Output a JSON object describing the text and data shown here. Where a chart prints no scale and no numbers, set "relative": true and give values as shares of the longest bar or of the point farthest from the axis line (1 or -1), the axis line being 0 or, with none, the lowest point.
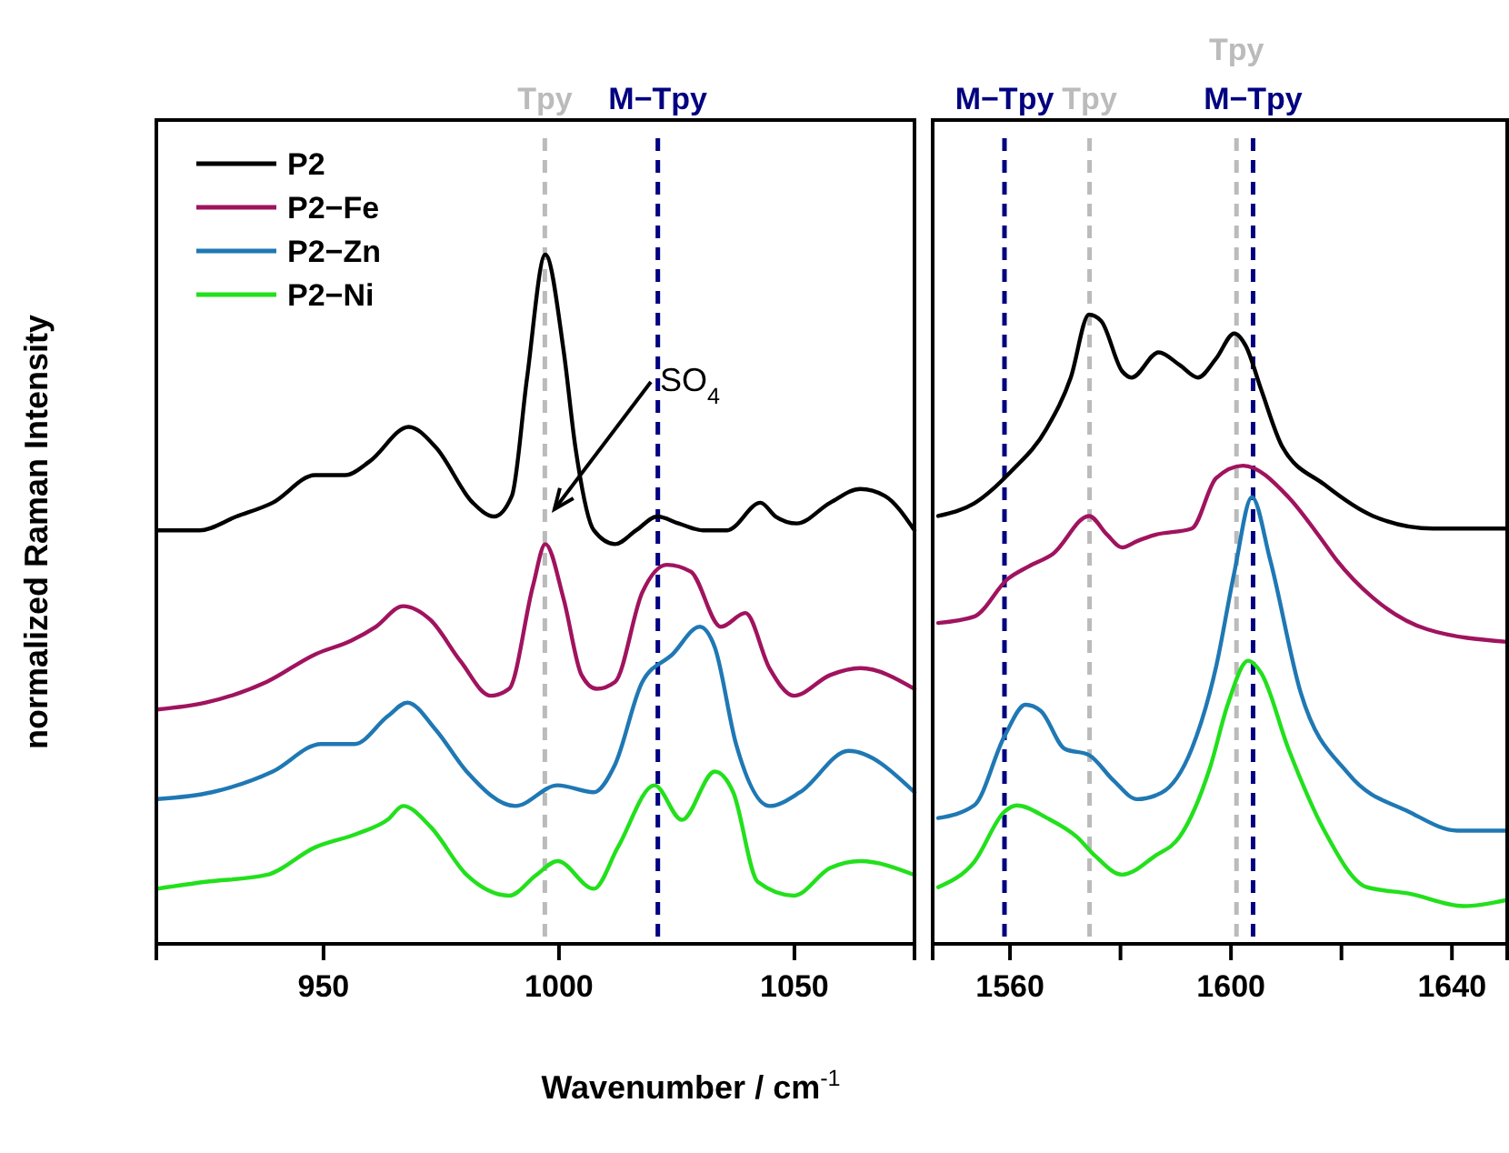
{
  "chart_data": [
    {
      "type": "line",
      "xlabel": "Wavenumber / cm$^{-1}$",
      "ylabel": "normalized Raman Intensity",
      "relative": true,
      "xlim": [
        914.5,
        1075.5
      ],
      "xticks": [
        950,
        1000,
        1050
      ],
      "legend": "top left",
      "line_style": "solid",
      "series": [
        {
          "name": "P2",
          "color": "#000000",
          "x": [
            914.7,
            923.7,
            931.5,
            939.2,
            948.2,
            954.6,
            959.8,
            968.1,
            973.9,
            981.7,
            986.2,
            990,
            993.2,
            997.1,
            1001,
            1003.5,
            1007.4,
            1011.9,
            1016.4,
            1020.9,
            1025.4,
            1030.6,
            1035.7,
            1042.8,
            1046,
            1050.5,
            1057.6,
            1064,
            1069.2,
            1075.5
          ],
          "values": [
            0.6,
            0.6,
            0.62,
            0.64,
            0.68,
            0.68,
            0.7,
            0.75,
            0.72,
            0.64,
            0.62,
            0.65,
            0.82,
            1,
            0.86,
            0.72,
            0.6,
            0.58,
            0.6,
            0.62,
            0.61,
            0.6,
            0.6,
            0.64,
            0.62,
            0.61,
            0.64,
            0.66,
            0.65,
            0.6
          ]
        },
        {
          "name": "P2−Fe",
          "color": "#a0135e",
          "x": [
            914.7,
            925,
            937.9,
            948.2,
            955.9,
            961.1,
            966.9,
            972.7,
            979.1,
            985.5,
            989.4,
            994.5,
            997.1,
            1001,
            1004.8,
            1008,
            1011.9,
            1017.7,
            1022.9,
            1028,
            1034.4,
            1039.6,
            1044.7,
            1049.9,
            1057.6,
            1064,
            1075.5
          ],
          "values": [
            0.34,
            0.35,
            0.38,
            0.42,
            0.44,
            0.46,
            0.49,
            0.47,
            0.41,
            0.36,
            0.37,
            0.52,
            0.58,
            0.5,
            0.39,
            0.37,
            0.38,
            0.51,
            0.55,
            0.54,
            0.46,
            0.48,
            0.4,
            0.36,
            0.39,
            0.4,
            0.37
          ]
        },
        {
          "name": "P2−Zn",
          "color": "#1f78b4",
          "x": [
            914.7,
            926.3,
            939.2,
            949.5,
            956.6,
            963.6,
            967.8,
            973.9,
            980.4,
            990.7,
            999.7,
            1007.4,
            1011.9,
            1017.7,
            1024.1,
            1029.9,
            1033.1,
            1037.6,
            1044.7,
            1051.2,
            1061.5,
            1075.5
          ],
          "values": [
            0.21,
            0.22,
            0.25,
            0.29,
            0.29,
            0.33,
            0.35,
            0.31,
            0.25,
            0.2,
            0.23,
            0.22,
            0.26,
            0.38,
            0.42,
            0.46,
            0.43,
            0.29,
            0.2,
            0.22,
            0.28,
            0.22
          ]
        },
        {
          "name": "P2−Ni",
          "color": "#22e01c",
          "x": [
            914.7,
            925,
            937.9,
            948.2,
            957.2,
            963.6,
            966.9,
            972.7,
            980.4,
            989.4,
            995.2,
            999.7,
            1007.4,
            1012.5,
            1020.3,
            1026.1,
            1033.1,
            1037,
            1042.2,
            1049.9,
            1057.6,
            1064,
            1075.5
          ],
          "values": [
            0.08,
            0.09,
            0.1,
            0.14,
            0.16,
            0.18,
            0.2,
            0.17,
            0.1,
            0.07,
            0.1,
            0.12,
            0.08,
            0.14,
            0.23,
            0.18,
            0.25,
            0.22,
            0.09,
            0.07,
            0.11,
            0.12,
            0.1
          ]
        }
      ],
      "ref_lines": [
        {
          "axis": "x",
          "value": 997,
          "label": "Tpy",
          "color": "#bbbbbb",
          "line_style": "dashed"
        },
        {
          "axis": "x",
          "value": 1021,
          "label": "M−Tpy",
          "color": "#000080",
          "line_style": "dashed"
        }
      ],
      "annotations": [
        "SO$_{4}$"
      ]
    },
    {
      "type": "line",
      "relative": true,
      "xlim": [
        1546,
        1650
      ],
      "xticks": [
        1560,
        {
          "value": 1580,
          "label": null
        },
        1600,
        {
          "value": 1620,
          "label": null
        },
        1640
      ],
      "line_style": "solid",
      "series": [
        {
          "color": "#000000",
          "x": [
            1547,
            1553.5,
            1560.1,
            1566.7,
            1571,
            1574.3,
            1576.5,
            1580.3,
            1582,
            1586.9,
            1590.7,
            1594,
            1597.3,
            1600.6,
            1602.7,
            1605.5,
            1609.3,
            1616.9,
            1625.7,
            1636.6,
            1650
          ],
          "values": [
            0.68,
            0.7,
            0.75,
            0.82,
            0.9,
            1,
            0.99,
            0.91,
            0.9,
            0.94,
            0.92,
            0.9,
            0.93,
            0.97,
            0.95,
            0.88,
            0.79,
            0.73,
            0.68,
            0.66,
            0.66
          ]
        },
        {
          "color": "#a0135e",
          "x": [
            1547,
            1553.5,
            1559.6,
            1563.4,
            1567.8,
            1574.3,
            1577.6,
            1580.3,
            1583,
            1586.3,
            1592.9,
            1597.3,
            1602.2,
            1610.4,
            1615.8,
            1619.1,
            1625.7,
            1635.5,
            1650
          ],
          "values": [
            0.51,
            0.52,
            0.58,
            0.6,
            0.62,
            0.68,
            0.65,
            0.63,
            0.64,
            0.65,
            0.66,
            0.74,
            0.76,
            0.71,
            0.65,
            0.61,
            0.55,
            0.5,
            0.48
          ]
        },
        {
          "color": "#1f78b4",
          "x": [
            1547,
            1553.5,
            1559,
            1562.8,
            1565.6,
            1569.9,
            1574.3,
            1578.7,
            1583,
            1587.4,
            1592.9,
            1597.3,
            1600.6,
            1603.8,
            1607.1,
            1612.6,
            1621.3,
            1632.2,
            1641,
            1650
          ],
          "values": [
            0.2,
            0.22,
            0.33,
            0.38,
            0.37,
            0.31,
            0.3,
            0.26,
            0.23,
            0.24,
            0.31,
            0.44,
            0.59,
            0.71,
            0.61,
            0.4,
            0.27,
            0.21,
            0.18,
            0.18
          ]
        },
        {
          "color": "#22e01c",
          "x": [
            1547,
            1553.5,
            1559,
            1561.2,
            1566.7,
            1572.1,
            1575.4,
            1580.3,
            1586.3,
            1590.7,
            1596.2,
            1599.4,
            1603.1,
            1605.5,
            1610.4,
            1616.9,
            1624.6,
            1632.2,
            1642.1,
            1650
          ],
          "values": [
            0.09,
            0.13,
            0.21,
            0.22,
            0.2,
            0.17,
            0.14,
            0.11,
            0.14,
            0.17,
            0.28,
            0.38,
            0.45,
            0.43,
            0.31,
            0.18,
            0.09,
            0.08,
            0.06,
            0.07
          ]
        }
      ],
      "ref_lines": [
        {
          "axis": "x",
          "value": 1559,
          "label": "M−Tpy",
          "color": "#000080",
          "line_style": "dashed"
        },
        {
          "axis": "x",
          "value": 1604,
          "label": "M−Tpy",
          "color": "#000080",
          "line_style": "dashed"
        },
        {
          "axis": "x",
          "value": 1574.4,
          "label": "Tpy",
          "color": "#bbbbbb",
          "line_style": "dashed"
        },
        {
          "axis": "x",
          "value": 1601,
          "label": "Tpy",
          "color": "#bbbbbb",
          "line_style": "dashed"
        }
      ]
    }
  ]
}
